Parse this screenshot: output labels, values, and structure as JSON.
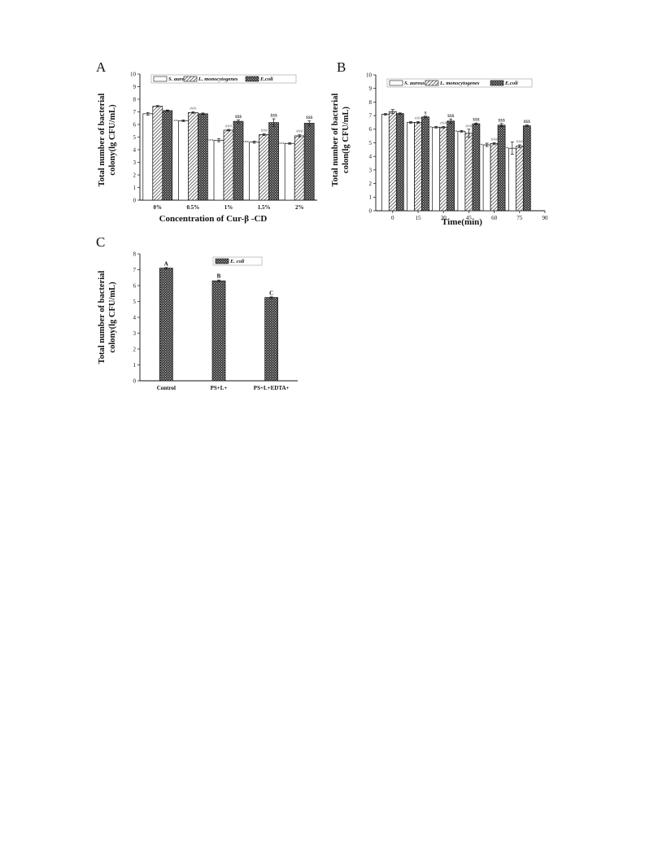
{
  "colors": {
    "s_aureus": "#ffffff",
    "l_mono": "#9a9a9a",
    "e_coli": "#3a3a3a",
    "axis": "#111111"
  },
  "chart_data": [
    {
      "panel": "A",
      "type": "bar",
      "xlabel": "Concentration of Cur-β -CD",
      "ylabel": [
        "Total number of bacterial",
        "colony(lg CFU/mL)"
      ],
      "ylim": [
        0,
        10
      ],
      "yticks": [
        0,
        1,
        2,
        3,
        4,
        5,
        6,
        7,
        8,
        9,
        10
      ],
      "legend": "top",
      "categories": [
        "0%",
        "0.5%",
        "1%",
        "1.5%",
        "2%"
      ],
      "series": [
        {
          "name": "S. aureus",
          "pattern": "white",
          "values": [
            6.85,
            6.3,
            4.75,
            4.6,
            4.5
          ],
          "errors": [
            0.1,
            0.06,
            0.12,
            0.08,
            0.06
          ],
          "labels": [
            "",
            "**",
            "***",
            "***",
            "***"
          ]
        },
        {
          "name": "L. monocytogenes",
          "pattern": "hatch",
          "values": [
            7.45,
            6.95,
            5.55,
            5.2,
            5.1
          ],
          "errors": [
            0.05,
            0.06,
            0.06,
            0.07,
            0.08
          ],
          "labels": [
            "",
            "###",
            "###",
            "###",
            "###"
          ]
        },
        {
          "name": "E.coli",
          "pattern": "cross",
          "values": [
            7.1,
            6.85,
            6.25,
            6.15,
            6.1
          ],
          "errors": [
            0.05,
            0.06,
            0.12,
            0.3,
            0.18
          ],
          "labels": [
            "",
            "",
            "$$$",
            "$$$",
            "$$$"
          ]
        }
      ]
    },
    {
      "panel": "B",
      "type": "bar",
      "xlabel": "Time(min)",
      "ylabel": [
        "Total number of bacterial",
        "colon(lg CFU/mL)"
      ],
      "ylim": [
        0,
        10
      ],
      "yticks": [
        0,
        1,
        2,
        3,
        4,
        5,
        6,
        7,
        8,
        9,
        10
      ],
      "xlim": [
        -10,
        90
      ],
      "xticks": [
        0,
        15,
        30,
        45,
        60,
        75,
        90
      ],
      "legend": "top",
      "x": [
        0,
        15,
        30,
        45,
        60,
        75
      ],
      "series": [
        {
          "name": "S. aureus",
          "pattern": "white",
          "values": [
            7.1,
            6.5,
            6.15,
            5.85,
            4.85,
            4.6
          ],
          "errors": [
            0.06,
            0.06,
            0.06,
            0.06,
            0.12,
            0.45
          ],
          "labels": [
            "",
            "",
            "***",
            "***",
            "***",
            "***"
          ]
        },
        {
          "name": "L. monocytogenes",
          "pattern": "hatch",
          "values": [
            7.3,
            6.5,
            6.15,
            5.7,
            4.95,
            4.75
          ],
          "errors": [
            0.15,
            0.06,
            0.06,
            0.3,
            0.06,
            0.1
          ],
          "labels": [
            "",
            "###",
            "###",
            "###",
            "###",
            "###"
          ]
        },
        {
          "name": "E.coli",
          "pattern": "cross",
          "values": [
            7.15,
            6.9,
            6.6,
            6.4,
            6.3,
            6.25
          ],
          "errors": [
            0.05,
            0.06,
            0.15,
            0.06,
            0.12,
            0.06
          ],
          "labels": [
            "",
            "$",
            "$$$",
            "$$$",
            "$$$",
            "$$$"
          ]
        }
      ]
    },
    {
      "panel": "C",
      "type": "bar",
      "xlabel": "",
      "ylabel": [
        "Total number of bacterial",
        "colony(lg CFU/mL)"
      ],
      "ylim": [
        0,
        8
      ],
      "yticks": [
        0,
        1,
        2,
        3,
        4,
        5,
        6,
        7,
        8
      ],
      "legend": "top-right",
      "categories": [
        "Control",
        "PS+L+",
        "PS+L+EDTA+"
      ],
      "series": [
        {
          "name": "E. coli",
          "pattern": "cross",
          "values": [
            7.1,
            6.3,
            5.25
          ],
          "errors": [
            0.04,
            0.05,
            0.04
          ],
          "labels": [
            "A",
            "B",
            "C"
          ]
        }
      ]
    }
  ]
}
